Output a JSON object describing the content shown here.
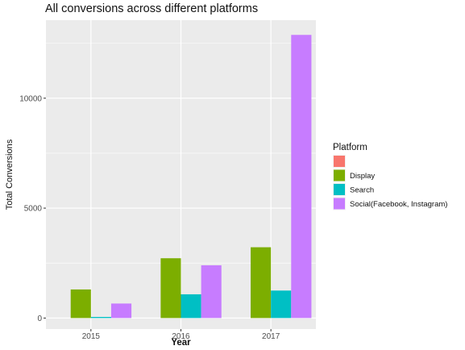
{
  "chart_data": {
    "type": "bar",
    "title": "All conversions across different platforms",
    "xlabel": "Year",
    "ylabel": "Total Conversions",
    "categories": [
      "2015",
      "2016",
      "2017"
    ],
    "series": [
      {
        "name": "",
        "color": "#F8766D",
        "values": [
          0,
          0,
          0
        ]
      },
      {
        "name": "Display",
        "color": "#7CAE00",
        "values": [
          1300,
          2720,
          3220
        ]
      },
      {
        "name": "Search",
        "color": "#00BFC4",
        "values": [
          50,
          1080,
          1250
        ]
      },
      {
        "name": "Social(Facebook, Instagram)",
        "color": "#C77CFF",
        "values": [
          660,
          2400,
          12880
        ]
      }
    ],
    "ylim": [
      -500,
      13550
    ],
    "yticks": [
      0,
      5000,
      10000
    ],
    "ytick_labels": [
      "0",
      "5000",
      "10000"
    ],
    "grid": true,
    "legend": {
      "title": "Platform",
      "placement": "right"
    },
    "panel_background": "#EBEBEB",
    "grid_color": "#FFFFFF"
  }
}
